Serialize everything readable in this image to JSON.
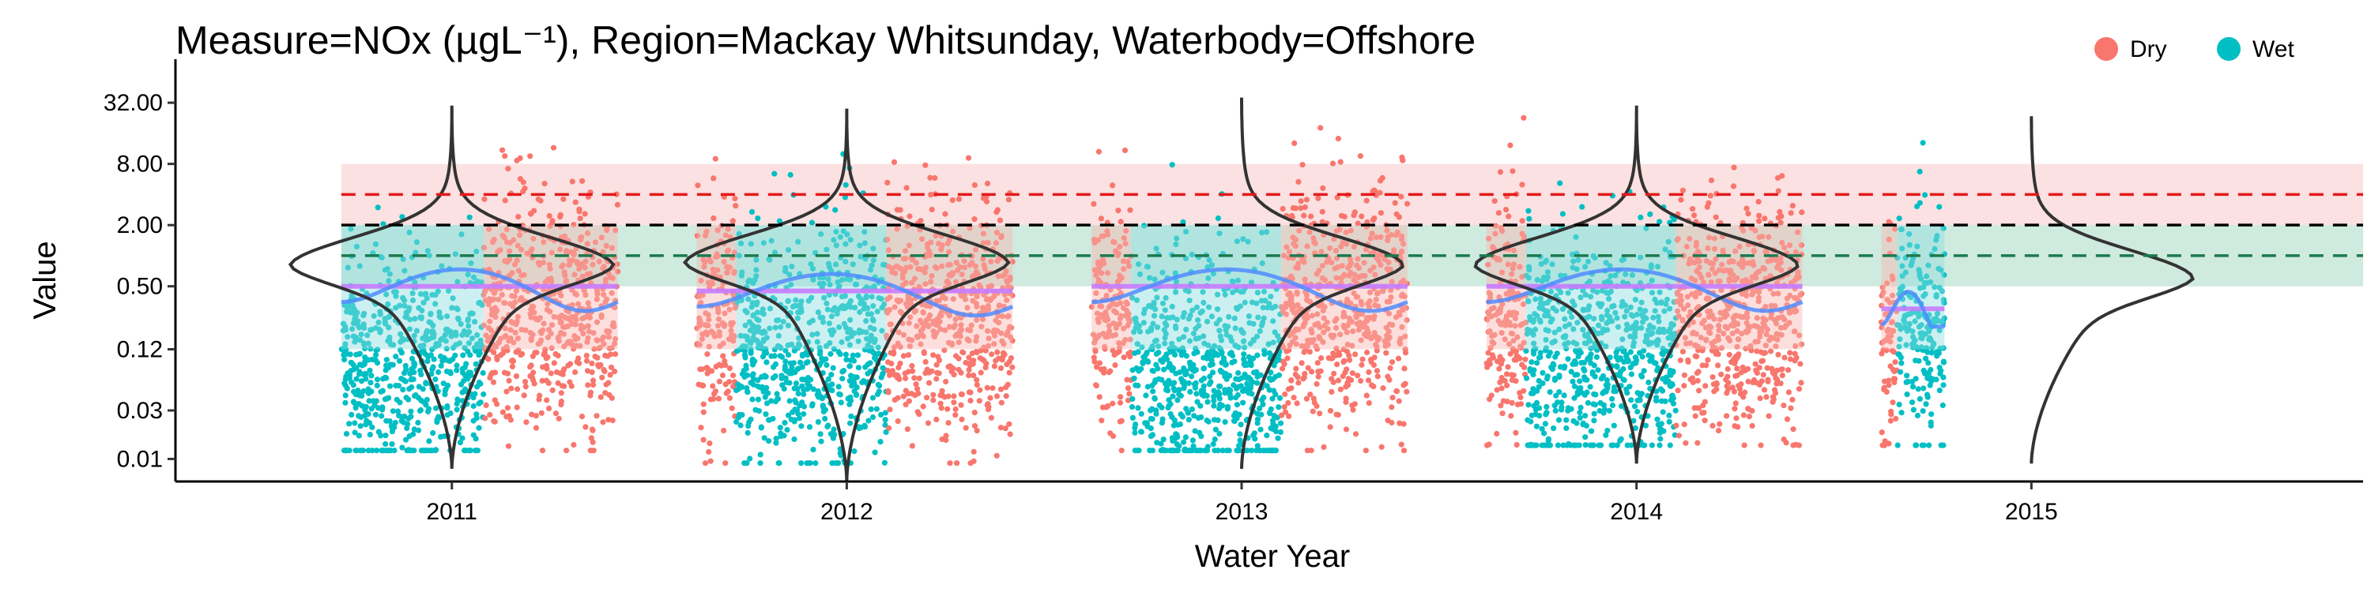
{
  "chart_data": {
    "type": "scatter",
    "title": "Measure=NOx (µgL⁻¹), Region=Mackay Whitsunday, Waterbody=Offshore",
    "xlabel": "Water Year",
    "ylabel": "Value",
    "y_scale": "log2",
    "ylim": [
      0.006,
      60
    ],
    "y_ticks": [
      32,
      8,
      2,
      0.5,
      0.12,
      0.03,
      0.01
    ],
    "y_tick_labels": [
      "32.00",
      "8.00",
      "2.00",
      "0.50",
      "0.12",
      "0.03",
      "0.01"
    ],
    "x_categories": [
      "2011",
      "2012",
      "2013",
      "2014",
      "2015"
    ],
    "legend": {
      "position": "top-right",
      "entries": [
        {
          "name": "Dry",
          "color": "#F8766D"
        },
        {
          "name": "Wet",
          "color": "#00BFC4"
        }
      ]
    },
    "reference_lines": [
      {
        "value": 4.0,
        "color": "#E41A1C",
        "style": "dashed"
      },
      {
        "value": 2.0,
        "color": "#000000",
        "style": "dashed"
      },
      {
        "value": 1.0,
        "color": "#1B7A4E",
        "style": "dashed"
      }
    ],
    "reference_bands": [
      {
        "from": 2.0,
        "to": 8.0,
        "color": "#F8C8C8"
      },
      {
        "from": 0.5,
        "to": 2.0,
        "color": "#A8D8C4"
      }
    ],
    "years": [
      {
        "year": "2011",
        "segments": [
          {
            "season": "Wet",
            "from": 2010.72,
            "to": 2011.08,
            "median": 0.08
          },
          {
            "season": "Dry",
            "from": 2011.08,
            "to": 2011.42,
            "median": 0.3
          }
        ],
        "violin_range": [
          0.008,
          30
        ],
        "violin_mode": 0.8,
        "median_line": 0.5
      },
      {
        "year": "2012",
        "segments": [
          {
            "season": "Dry",
            "from": 2011.62,
            "to": 2011.72,
            "median": 0.25
          },
          {
            "season": "Wet",
            "from": 2011.72,
            "to": 2012.1,
            "median": 0.12
          },
          {
            "season": "Dry",
            "from": 2012.1,
            "to": 2012.42,
            "median": 0.25
          }
        ],
        "violin_range": [
          0.006,
          28
        ],
        "violin_mode": 0.85,
        "median_line": 0.45
      },
      {
        "year": "2013",
        "segments": [
          {
            "season": "Dry",
            "from": 2012.62,
            "to": 2012.72,
            "median": 0.25
          },
          {
            "season": "Wet",
            "from": 2012.72,
            "to": 2013.1,
            "median": 0.08
          },
          {
            "season": "Dry",
            "from": 2013.1,
            "to": 2013.42,
            "median": 0.3
          }
        ],
        "violin_range": [
          0.008,
          40
        ],
        "violin_mode": 0.8,
        "median_line": 0.5
      },
      {
        "year": "2014",
        "segments": [
          {
            "season": "Dry",
            "from": 2013.62,
            "to": 2013.72,
            "median": 0.25
          },
          {
            "season": "Wet",
            "from": 2013.72,
            "to": 2014.1,
            "median": 0.1
          },
          {
            "season": "Dry",
            "from": 2014.1,
            "to": 2014.42,
            "median": 0.25
          }
        ],
        "violin_range": [
          0.009,
          30
        ],
        "violin_mode": 0.8,
        "median_line": 0.5
      },
      {
        "year": "2015",
        "segments": [
          {
            "season": "Dry",
            "from": 2014.62,
            "to": 2014.66,
            "median": 0.15
          },
          {
            "season": "Wet",
            "from": 2014.66,
            "to": 2014.78,
            "median": 0.2
          }
        ],
        "violin_range": [
          0.009,
          26
        ],
        "violin_mode": 0.6,
        "median_line": 0.3
      }
    ]
  }
}
